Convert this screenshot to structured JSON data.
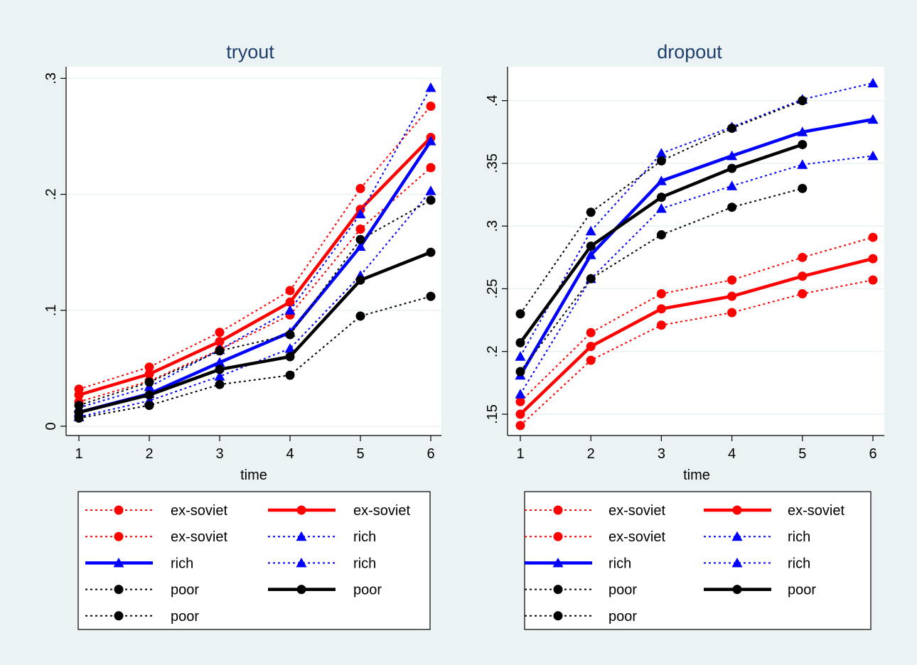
{
  "colors": {
    "red": "#ff0000",
    "blue": "#0000ff",
    "black": "#000000",
    "background": "#eaf2f3",
    "plot_bg": "#ffffff",
    "grid": "#eaf2f3"
  },
  "chart_data": [
    {
      "type": "line",
      "title": "tryout",
      "xlabel": "time",
      "ylabel": "",
      "x": [
        1,
        2,
        3,
        4,
        5,
        6
      ],
      "xticks": [
        "1",
        "2",
        "3",
        "4",
        "5",
        "6"
      ],
      "yticks": [
        0,
        0.1,
        0.2,
        0.3
      ],
      "ytick_labels": [
        "0",
        ".1",
        ".2",
        ".3"
      ],
      "ylim": [
        -0.008,
        0.31
      ],
      "grid": true,
      "legend_position": "bottom",
      "series": [
        {
          "name": "ex-soviet",
          "color": "red",
          "style": "dotted",
          "marker": "circle",
          "values": [
            0.021,
            0.039,
            0.066,
            0.096,
            0.17,
            0.223
          ]
        },
        {
          "name": "ex-soviet",
          "color": "red",
          "style": "solid",
          "marker": "circle",
          "values": [
            0.027,
            0.045,
            0.073,
            0.107,
            0.187,
            0.249
          ]
        },
        {
          "name": "ex-soviet",
          "color": "red",
          "style": "dotted",
          "marker": "circle",
          "values": [
            0.032,
            0.051,
            0.081,
            0.117,
            0.205,
            0.276
          ]
        },
        {
          "name": "rich",
          "color": "blue",
          "style": "dotted",
          "marker": "triangle",
          "values": [
            0.008,
            0.022,
            0.043,
            0.067,
            0.13,
            0.203
          ]
        },
        {
          "name": "rich",
          "color": "blue",
          "style": "solid",
          "marker": "triangle",
          "values": [
            0.012,
            0.028,
            0.055,
            0.081,
            0.155,
            0.246
          ]
        },
        {
          "name": "rich",
          "color": "blue",
          "style": "dotted",
          "marker": "triangle",
          "values": [
            0.016,
            0.034,
            0.066,
            0.1,
            0.183,
            0.292
          ]
        },
        {
          "name": "poor",
          "color": "black",
          "style": "dotted",
          "marker": "circle",
          "values": [
            0.018,
            0.038,
            0.065,
            0.079,
            0.161,
            0.195
          ]
        },
        {
          "name": "poor",
          "color": "black",
          "style": "solid",
          "marker": "circle",
          "values": [
            0.012,
            0.027,
            0.049,
            0.06,
            0.126,
            0.15
          ]
        },
        {
          "name": "poor",
          "color": "black",
          "style": "dotted",
          "marker": "circle",
          "values": [
            0.007,
            0.018,
            0.036,
            0.044,
            0.095,
            0.112
          ]
        }
      ],
      "legend_entries": [
        {
          "label": "ex-soviet",
          "color": "red",
          "style": "dotted",
          "marker": "circle"
        },
        {
          "label": "ex-soviet",
          "color": "red",
          "style": "solid",
          "marker": "circle"
        },
        {
          "label": "ex-soviet",
          "color": "red",
          "style": "dotted",
          "marker": "circle"
        },
        {
          "label": "rich",
          "color": "blue",
          "style": "dotted",
          "marker": "triangle"
        },
        {
          "label": "rich",
          "color": "blue",
          "style": "solid",
          "marker": "triangle"
        },
        {
          "label": "rich",
          "color": "blue",
          "style": "dotted",
          "marker": "triangle"
        },
        {
          "label": "poor",
          "color": "black",
          "style": "dotted",
          "marker": "circle"
        },
        {
          "label": "poor",
          "color": "black",
          "style": "solid",
          "marker": "circle"
        },
        {
          "label": "poor",
          "color": "black",
          "style": "dotted",
          "marker": "circle"
        }
      ]
    },
    {
      "type": "line",
      "title": "dropout",
      "xlabel": "time",
      "ylabel": "",
      "x": [
        1,
        2,
        3,
        4,
        5,
        6
      ],
      "xticks": [
        "1",
        "2",
        "3",
        "4",
        "5",
        "6"
      ],
      "yticks": [
        0.15,
        0.2,
        0.25,
        0.3,
        0.35,
        0.4
      ],
      "ytick_labels": [
        ".15",
        ".2",
        ".25",
        ".3",
        ".35",
        ".4"
      ],
      "ylim": [
        0.133,
        0.427
      ],
      "grid": true,
      "legend_position": "bottom",
      "series": [
        {
          "name": "ex-soviet",
          "color": "red",
          "style": "dotted",
          "marker": "circle",
          "values": [
            0.141,
            0.193,
            0.221,
            0.231,
            0.246,
            0.257
          ]
        },
        {
          "name": "ex-soviet",
          "color": "red",
          "style": "solid",
          "marker": "circle",
          "values": [
            0.15,
            0.204,
            0.234,
            0.244,
            0.26,
            0.274
          ]
        },
        {
          "name": "ex-soviet",
          "color": "red",
          "style": "dotted",
          "marker": "circle",
          "values": [
            0.16,
            0.215,
            0.246,
            0.257,
            0.275,
            0.291
          ]
        },
        {
          "name": "rich",
          "color": "blue",
          "style": "dotted",
          "marker": "triangle",
          "values": [
            0.196,
            0.296,
            0.358,
            0.379,
            0.401,
            0.414
          ]
        },
        {
          "name": "rich",
          "color": "blue",
          "style": "solid",
          "marker": "triangle",
          "values": [
            0.181,
            0.277,
            0.336,
            0.356,
            0.375,
            0.385
          ]
        },
        {
          "name": "rich",
          "color": "blue",
          "style": "dotted",
          "marker": "triangle",
          "values": [
            0.166,
            0.258,
            0.314,
            0.332,
            0.349,
            0.356
          ]
        },
        {
          "name": "poor",
          "color": "black",
          "style": "dotted",
          "marker": "circle",
          "values": [
            0.23,
            0.311,
            0.352,
            0.378,
            0.4,
            null
          ]
        },
        {
          "name": "poor",
          "color": "black",
          "style": "solid",
          "marker": "circle",
          "values": [
            0.207,
            0.284,
            0.323,
            0.346,
            0.365,
            null
          ]
        },
        {
          "name": "poor",
          "color": "black",
          "style": "dotted",
          "marker": "circle",
          "values": [
            0.184,
            0.258,
            0.293,
            0.315,
            0.33,
            null
          ]
        }
      ],
      "legend_entries": [
        {
          "label": "ex-soviet",
          "color": "red",
          "style": "dotted",
          "marker": "circle"
        },
        {
          "label": "ex-soviet",
          "color": "red",
          "style": "solid",
          "marker": "circle"
        },
        {
          "label": "ex-soviet",
          "color": "red",
          "style": "dotted",
          "marker": "circle"
        },
        {
          "label": "rich",
          "color": "blue",
          "style": "dotted",
          "marker": "triangle"
        },
        {
          "label": "rich",
          "color": "blue",
          "style": "solid",
          "marker": "triangle"
        },
        {
          "label": "rich",
          "color": "blue",
          "style": "dotted",
          "marker": "triangle"
        },
        {
          "label": "poor",
          "color": "black",
          "style": "dotted",
          "marker": "circle"
        },
        {
          "label": "poor",
          "color": "black",
          "style": "solid",
          "marker": "circle"
        },
        {
          "label": "poor",
          "color": "black",
          "style": "dotted",
          "marker": "circle"
        }
      ]
    }
  ]
}
